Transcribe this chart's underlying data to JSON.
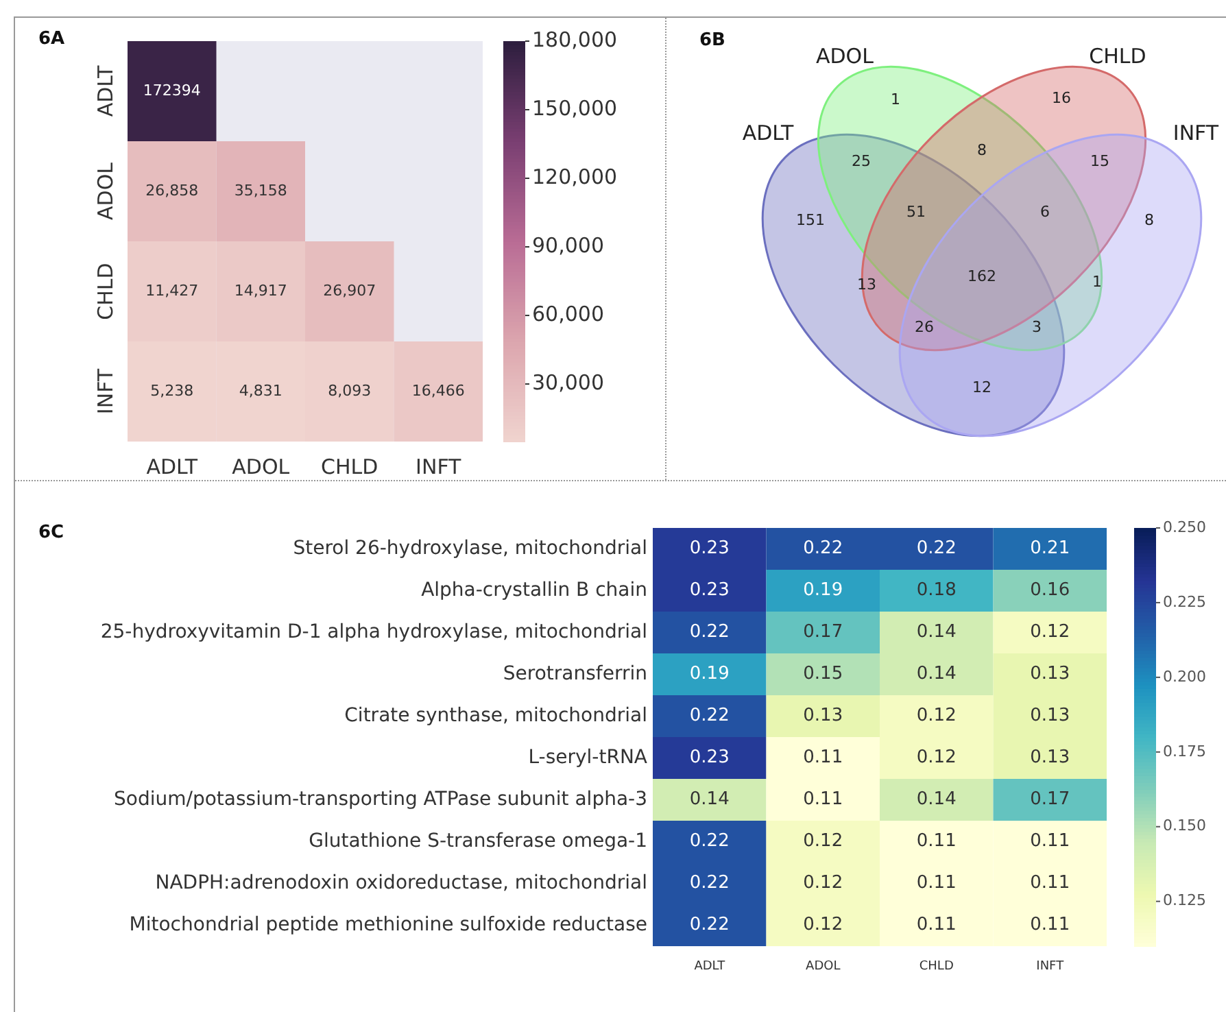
{
  "chart_data": [
    {
      "type": "heatmap",
      "title": "6A",
      "categories": [
        "ADLT",
        "ADOL",
        "CHLD",
        "INFT"
      ],
      "y_categories": [
        "ADLT",
        "ADOL",
        "CHLD",
        "INFT"
      ],
      "cells": [
        [
          172394,
          null,
          null,
          null
        ],
        [
          26858,
          35158,
          null,
          null
        ],
        [
          11427,
          14917,
          26907,
          null
        ],
        [
          5238,
          4831,
          8093,
          16466
        ]
      ],
      "cell_labels": [
        [
          "172394",
          null,
          null,
          null
        ],
        [
          "26,858",
          "35,158",
          null,
          null
        ],
        [
          "11,427",
          "14,917",
          "26,907",
          null
        ],
        [
          "5,238",
          "4,831",
          "8,093",
          "16,466"
        ]
      ],
      "clim": [
        4831,
        180000
      ],
      "cticks": [
        {
          "value": 30000,
          "label": "30,000"
        },
        {
          "value": 60000,
          "label": "60,000"
        },
        {
          "value": 90000,
          "label": "90,000"
        },
        {
          "value": 120000,
          "label": "120,000"
        },
        {
          "value": 150000,
          "label": "150,000"
        },
        {
          "value": 180000,
          "label": "180,000"
        }
      ]
    },
    {
      "type": "other",
      "title": "6B",
      "categories": [
        "ADLT",
        "ADOL",
        "CHLD",
        "INFT"
      ],
      "annotations": [
        "1",
        "16",
        "25",
        "8",
        "15",
        "151",
        "51",
        "6",
        "8",
        "13",
        "162",
        "1",
        "26",
        "3",
        "12"
      ]
    },
    {
      "type": "heatmap",
      "title": "6C",
      "categories": [
        "ADLT",
        "ADOL",
        "CHLD",
        "INFT"
      ],
      "y_categories": [
        "Sterol 26-hydroxylase, mitochondrial",
        "Alpha-crystallin B chain",
        "25-hydroxyvitamin D-1 alpha hydroxylase, mitochondrial",
        "Serotransferrin",
        "Citrate synthase, mitochondrial",
        "L-seryl-tRNA",
        "Sodium/potassium-transporting ATPase subunit alpha-3",
        "Glutathione S-transferase omega-1",
        "NADPH:adrenodoxin oxidoreductase, mitochondrial",
        "Mitochondrial peptide methionine sulfoxide reductase"
      ],
      "cells": [
        [
          0.23,
          0.22,
          0.22,
          0.21
        ],
        [
          0.23,
          0.19,
          0.18,
          0.16
        ],
        [
          0.22,
          0.17,
          0.14,
          0.12
        ],
        [
          0.19,
          0.15,
          0.14,
          0.13
        ],
        [
          0.22,
          0.13,
          0.12,
          0.13
        ],
        [
          0.23,
          0.11,
          0.12,
          0.13
        ],
        [
          0.14,
          0.11,
          0.14,
          0.17
        ],
        [
          0.22,
          0.12,
          0.11,
          0.11
        ],
        [
          0.22,
          0.12,
          0.11,
          0.11
        ],
        [
          0.22,
          0.12,
          0.11,
          0.11
        ]
      ],
      "data_labels": true,
      "clim": [
        0.11,
        0.25
      ],
      "cticks": [
        0.125,
        {
          "value": 0.15,
          "label": "0.150"
        },
        0.175,
        {
          "value": 0.2,
          "label": "0.200"
        },
        0.225,
        {
          "value": 0.25,
          "label": "0.250"
        }
      ]
    }
  ]
}
